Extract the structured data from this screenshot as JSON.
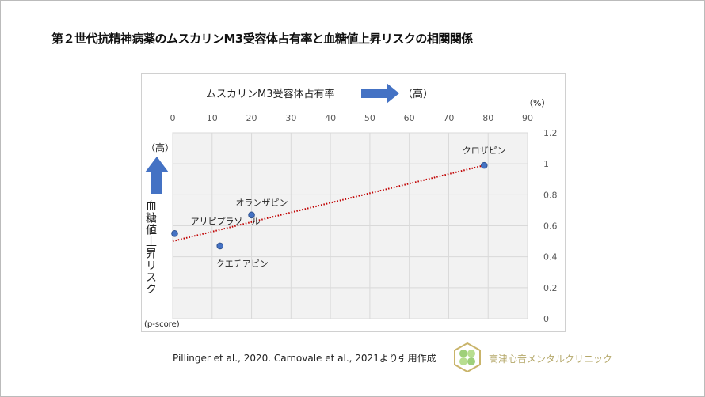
{
  "title": "第２世代抗精神病薬のムスカリンM3受容体占有率と血糖値上昇リスクの相関関係",
  "citation": "Pillinger et al., 2020. Carnovale et al., 2021より引用作成",
  "clinic_name": "高津心音メンタルクリニック",
  "chart_data": {
    "type": "scatter",
    "xlabel": "ムスカリンM3受容体占有率",
    "xlabel_high": "（高）",
    "x_unit": "（%）",
    "ylabel": "血糖値上昇リスク",
    "ylabel_high": "（高）",
    "y_unit": "(p-score)",
    "xlim": [
      0,
      90
    ],
    "ylim": [
      0,
      1.2
    ],
    "x_ticks": [
      "0",
      "10",
      "20",
      "30",
      "40",
      "50",
      "60",
      "70",
      "80",
      "90"
    ],
    "y_ticks": [
      "0",
      "0.2",
      "0.4",
      "0.6",
      "0.8",
      "1",
      "1.2"
    ],
    "grid": true,
    "points": [
      {
        "label": "アリピプラゾール",
        "x": 0.5,
        "y": 0.55
      },
      {
        "label": "クエチアピン",
        "x": 12,
        "y": 0.47
      },
      {
        "label": "オランザピン",
        "x": 20,
        "y": 0.67
      },
      {
        "label": "クロザピン",
        "x": 79,
        "y": 0.99
      }
    ],
    "trendline": {
      "x": [
        0,
        79
      ],
      "y": [
        0.5,
        0.99
      ]
    },
    "colors": {
      "point": "#4472c4",
      "trend": "#c00000",
      "arrow": "#4472c4",
      "plot_bg": "#f2f2f2"
    }
  }
}
